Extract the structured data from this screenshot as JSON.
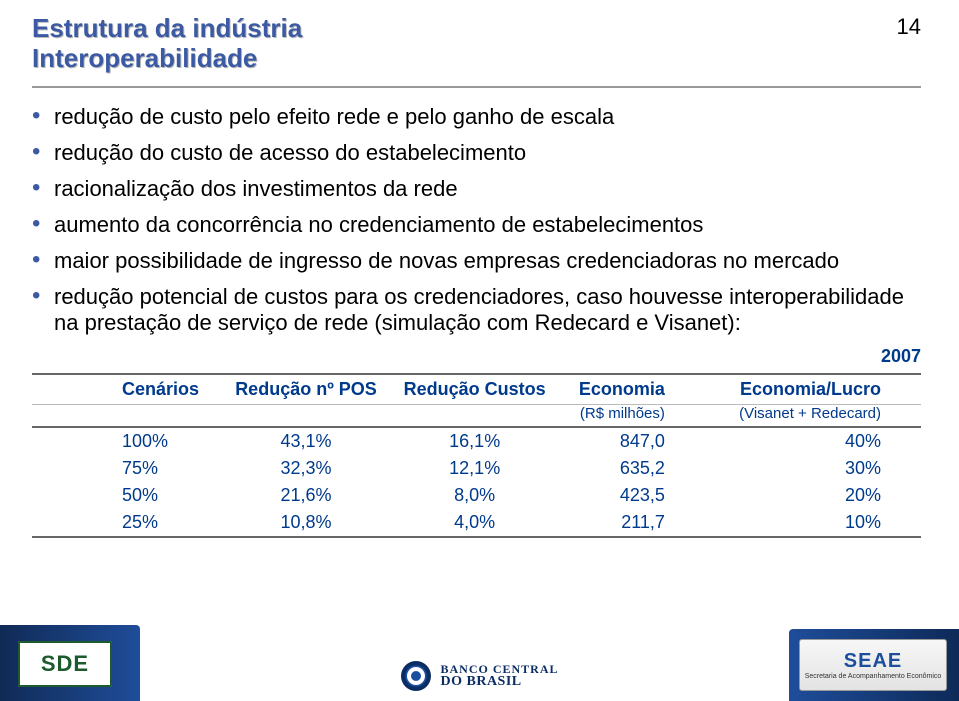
{
  "page_number": "14",
  "header": {
    "line1": "Estrutura da indústria",
    "line2": "Interoperabilidade"
  },
  "bullets": [
    "redução de custo pelo efeito rede e pelo ganho de escala",
    "redução do custo de acesso do estabelecimento",
    "racionalização dos investimentos da rede",
    "aumento da concorrência no credenciamento de estabelecimentos",
    "maior possibilidade de ingresso de novas empresas credenciadoras no mercado",
    "redução potencial de custos para os credenciadores, caso houvesse interoperabilidade na prestação de serviço de rede (simulação com Redecard e Visanet):"
  ],
  "table": {
    "year": "2007",
    "columns": [
      "Cenários",
      "Redução nº POS",
      "Redução Custos",
      "Economia",
      "Economia/Lucro"
    ],
    "subcolumns": [
      "",
      "",
      "",
      "(R$ milhões)",
      "(Visanet + Redecard)"
    ],
    "rows": [
      [
        "100%",
        "43,1%",
        "16,1%",
        "847,0",
        "40%"
      ],
      [
        "75%",
        "32,3%",
        "12,1%",
        "635,2",
        "30%"
      ],
      [
        "50%",
        "21,6%",
        "8,0%",
        "423,5",
        "20%"
      ],
      [
        "25%",
        "10,8%",
        "4,0%",
        "211,7",
        "10%"
      ]
    ],
    "colors": {
      "header_text": "#003a8c",
      "cell_text": "#003a8c",
      "border": "#666666"
    }
  },
  "footer": {
    "left_logo_text": "SDE",
    "center_logo": {
      "line1": "BANCO CENTRAL",
      "line2": "DO BRASIL"
    },
    "right_logo": {
      "title": "SEAE",
      "subtitle": "Secretaria de Acompanhamento Econômico"
    }
  }
}
